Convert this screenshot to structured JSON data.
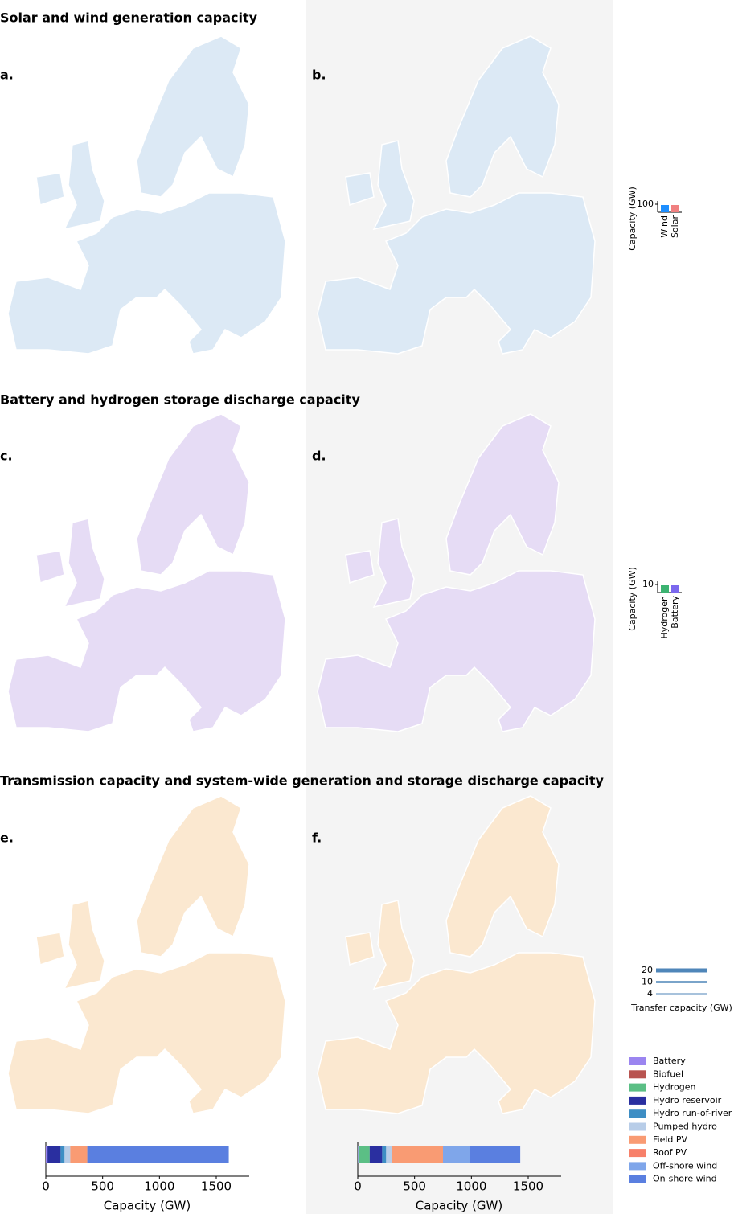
{
  "sections": [
    "Solar and wind generation capacity",
    "Battery and hydrogen storage discharge capacity",
    "Transmission capacity and system-wide generation and storage discharge capacity"
  ],
  "panels": [
    "a.",
    "b.",
    "c.",
    "d.",
    "e.",
    "f."
  ],
  "legend_generation": {
    "axis_label": "Capacity (GW)",
    "tick": 100,
    "series": [
      {
        "name": "Wind",
        "color": "#1e8fff"
      },
      {
        "name": "Solar",
        "color": "#f08080"
      }
    ]
  },
  "legend_storage": {
    "axis_label": "Capacity (GW)",
    "tick": 10,
    "series": [
      {
        "name": "Hydrogen",
        "color": "#3cb371"
      },
      {
        "name": "Battery",
        "color": "#7b68ee"
      }
    ]
  },
  "legend_transfer": {
    "title": "Transfer capacity (GW)",
    "ticks": [
      20,
      10,
      4
    ],
    "color": "#4f86b9"
  },
  "chart_data": [
    {
      "type": "stacked_bar",
      "xlabel": "Capacity (GW)",
      "xlim": [
        0,
        1790
      ],
      "xticks": [
        0,
        500,
        1000,
        1500
      ],
      "series": [
        {
          "name": "Battery",
          "color": "#9b85f0",
          "values": [
            15
          ]
        },
        {
          "name": "Biofuel",
          "color": "#b85450",
          "values": [
            0
          ]
        },
        {
          "name": "Hydrogen",
          "color": "#5bbf85",
          "values": [
            0
          ]
        },
        {
          "name": "Hydro reservoir",
          "color": "#2a2fa0",
          "values": [
            115
          ]
        },
        {
          "name": "Hydro run-of-river",
          "color": "#3e8ec4",
          "values": [
            35
          ]
        },
        {
          "name": "Pumped hydro",
          "color": "#b8cde8",
          "values": [
            50
          ]
        },
        {
          "name": "Field PV",
          "color": "#f99b73",
          "values": [
            150
          ]
        },
        {
          "name": "Roof PV",
          "color": "#f7806a",
          "values": [
            0
          ]
        },
        {
          "name": "Off-shore wind",
          "color": "#7fa6ea",
          "values": [
            0
          ]
        },
        {
          "name": "On-shore wind",
          "color": "#5a7fe0",
          "values": [
            1245
          ]
        }
      ]
    },
    {
      "type": "stacked_bar",
      "xlabel": "Capacity (GW)",
      "xlim": [
        0,
        1790
      ],
      "xticks": [
        0,
        500,
        1000,
        1500
      ],
      "series": [
        {
          "name": "Battery",
          "color": "#9b85f0",
          "values": [
            5
          ]
        },
        {
          "name": "Biofuel",
          "color": "#b85450",
          "values": [
            0
          ]
        },
        {
          "name": "Hydrogen",
          "color": "#5bbf85",
          "values": [
            100
          ]
        },
        {
          "name": "Hydro reservoir",
          "color": "#2a2fa0",
          "values": [
            110
          ]
        },
        {
          "name": "Hydro run-of-river",
          "color": "#3e8ec4",
          "values": [
            35
          ]
        },
        {
          "name": "Pumped hydro",
          "color": "#b8cde8",
          "values": [
            50
          ]
        },
        {
          "name": "Field PV",
          "color": "#f99b73",
          "values": [
            450
          ]
        },
        {
          "name": "Roof PV",
          "color": "#f7806a",
          "values": [
            0
          ]
        },
        {
          "name": "Off-shore wind",
          "color": "#7fa6ea",
          "values": [
            240
          ]
        },
        {
          "name": "On-shore wind",
          "color": "#5a7fe0",
          "values": [
            440
          ]
        }
      ]
    }
  ]
}
